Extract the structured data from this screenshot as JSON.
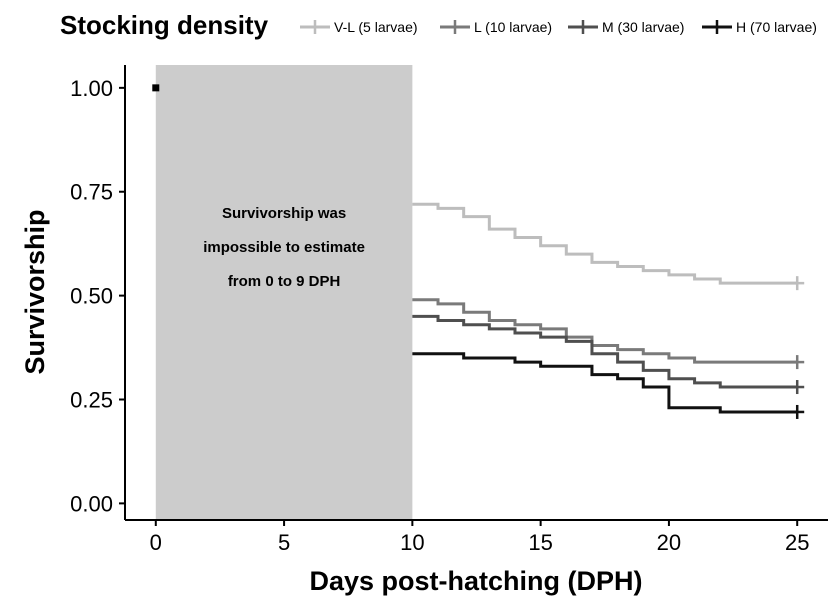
{
  "chart_data": {
    "type": "line",
    "subtype": "step (Kaplan-Meier survival curves)",
    "xlabel": "Days post-hatching (DPH)",
    "ylabel": "Survivorship",
    "xlim": [
      -1.2,
      26.2
    ],
    "ylim": [
      -0.04,
      1.055
    ],
    "x_ticks": [
      0,
      5,
      10,
      15,
      20,
      25
    ],
    "x_tick_labels": [
      "0",
      "5",
      "10",
      "15",
      "20",
      "25"
    ],
    "y_ticks": [
      0.0,
      0.25,
      0.5,
      0.75,
      1.0
    ],
    "y_tick_labels": [
      "0.00",
      "0.25",
      "0.50",
      "0.75",
      "1.00"
    ],
    "grid": false,
    "legend": {
      "title": "Stocking density",
      "placement": "top"
    },
    "initial_point": {
      "x": 0,
      "y": 1.0
    },
    "shaded_region": {
      "x_from": 0,
      "x_to": 10,
      "color": "#cccccc",
      "annotation": [
        "Survivorship was",
        "impossible to estimate",
        "from 0 to 9 DPH"
      ]
    },
    "series": [
      {
        "name": "V-L (5 larvae)",
        "color": "#bdbdbd",
        "x": [
          10,
          11,
          12,
          13,
          14,
          15,
          16,
          17,
          18,
          19,
          20,
          21,
          22,
          23,
          24,
          25
        ],
        "y": [
          0.72,
          0.71,
          0.69,
          0.66,
          0.64,
          0.62,
          0.6,
          0.58,
          0.57,
          0.56,
          0.55,
          0.54,
          0.53,
          0.53,
          0.53,
          0.53
        ]
      },
      {
        "name": "L (10 larvae)",
        "color": "#7a7a7a",
        "x": [
          10,
          11,
          12,
          13,
          14,
          15,
          16,
          17,
          18,
          19,
          20,
          21,
          22,
          23,
          24,
          25
        ],
        "y": [
          0.49,
          0.48,
          0.46,
          0.44,
          0.43,
          0.42,
          0.4,
          0.38,
          0.37,
          0.36,
          0.35,
          0.34,
          0.34,
          0.34,
          0.34,
          0.34
        ]
      },
      {
        "name": "M (30 larvae)",
        "color": "#4f4f4f",
        "x": [
          10,
          11,
          12,
          13,
          14,
          15,
          16,
          17,
          18,
          19,
          20,
          21,
          22,
          23,
          24,
          25
        ],
        "y": [
          0.45,
          0.44,
          0.43,
          0.42,
          0.41,
          0.4,
          0.39,
          0.36,
          0.34,
          0.32,
          0.3,
          0.29,
          0.28,
          0.28,
          0.28,
          0.28
        ]
      },
      {
        "name": "H (70 larvae)",
        "color": "#111111",
        "x": [
          10,
          11,
          12,
          13,
          14,
          15,
          16,
          17,
          18,
          19,
          20,
          21,
          22,
          23,
          24,
          25
        ],
        "y": [
          0.36,
          0.36,
          0.35,
          0.35,
          0.34,
          0.33,
          0.33,
          0.31,
          0.3,
          0.28,
          0.23,
          0.23,
          0.22,
          0.22,
          0.22,
          0.22
        ]
      }
    ]
  }
}
